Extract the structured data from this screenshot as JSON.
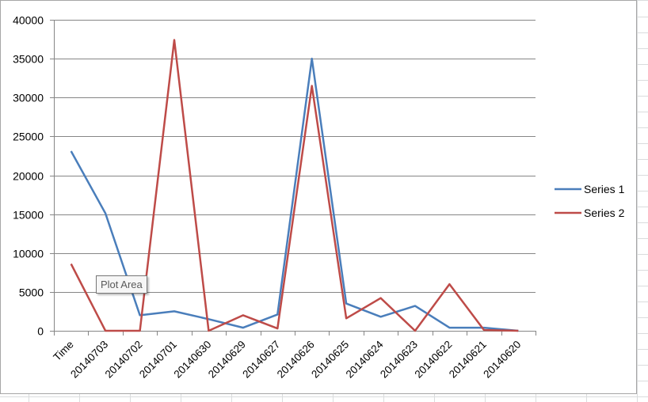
{
  "colors": {
    "series1": "#4a7ebb",
    "series2": "#be4b48",
    "grid": "#868686",
    "sheet_grid": "#dadcdd"
  },
  "tooltip": {
    "text": "Plot Area"
  },
  "chart_data": {
    "type": "line",
    "title": "",
    "xlabel": "",
    "ylabel": "",
    "categories": [
      "Time",
      "20140703",
      "20140702",
      "20140701",
      "20140630",
      "20140629",
      "20140627",
      "20140626",
      "20140625",
      "20140624",
      "20140623",
      "20140622",
      "20140621",
      "20140620"
    ],
    "series": [
      {
        "name": "Series 1",
        "values": [
          23100,
          15100,
          2000,
          2500,
          1500,
          400,
          2100,
          35000,
          3500,
          1800,
          3200,
          400,
          400,
          0
        ]
      },
      {
        "name": "Series 2",
        "values": [
          8600,
          0,
          0,
          37400,
          0,
          2000,
          300,
          31500,
          1600,
          4200,
          0,
          6000,
          100,
          0
        ]
      }
    ],
    "ylim": [
      0,
      40000
    ],
    "yticks": [
      0,
      5000,
      10000,
      15000,
      20000,
      25000,
      30000,
      35000,
      40000
    ],
    "grid": true,
    "legend": "right"
  }
}
